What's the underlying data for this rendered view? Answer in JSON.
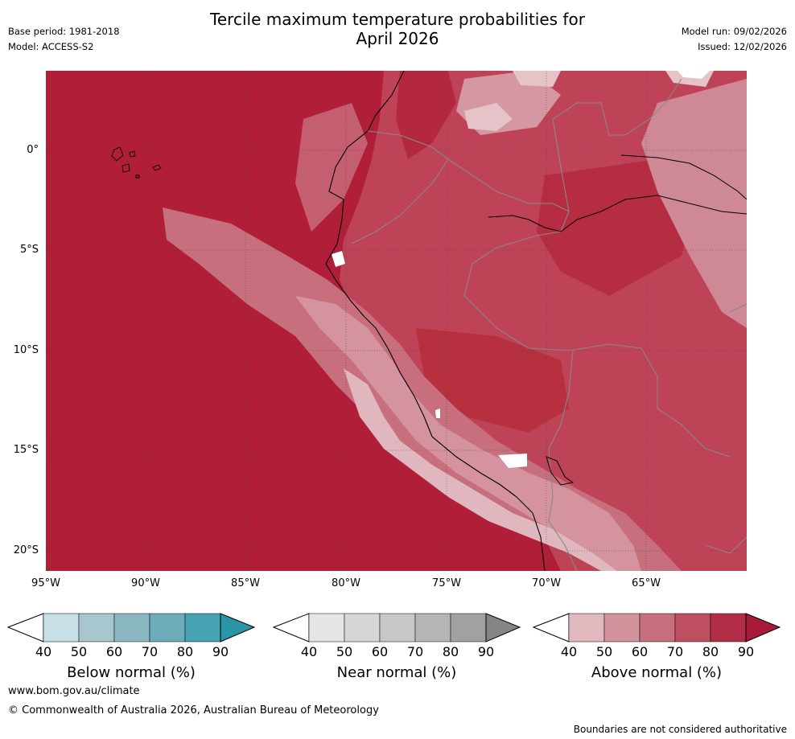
{
  "title": {
    "line1": "Tercile maximum temperature probabilities for",
    "line2": "April 2026"
  },
  "meta": {
    "base_period": "Base period: 1981-2018",
    "model": "Model: ACCESS-S2",
    "model_run": "Model run: 09/02/2026",
    "issued": "Issued: 12/02/2026"
  },
  "map": {
    "lat_ticks": [
      "0°",
      "5°S",
      "10°S",
      "15°S",
      "20°S"
    ],
    "lon_ticks": [
      "95°W",
      "90°W",
      "85°W",
      "80°W",
      "75°W",
      "70°W",
      "65°W"
    ],
    "dominant_category": "Above normal",
    "ocean_probability_band": "80-90",
    "land_probability_band": "60-80",
    "coastal_probability_band": "40-60"
  },
  "colorbars": [
    {
      "name": "below",
      "label": "Below normal (%)",
      "ticks": [
        "40",
        "50",
        "60",
        "70",
        "80",
        "90"
      ],
      "colors": [
        "#c6e0e6",
        "#a7c6cd",
        "#8ab7c2",
        "#6cadb9",
        "#48a3b2"
      ],
      "arrow_color": "#2a95a6"
    },
    {
      "name": "near",
      "label": "Near normal (%)",
      "ticks": [
        "40",
        "50",
        "60",
        "70",
        "80",
        "90"
      ],
      "colors": [
        "#e5e5e5",
        "#d6d6d6",
        "#c7c7c7",
        "#b5b5b5",
        "#a1a1a1"
      ],
      "arrow_color": "#858585"
    },
    {
      "name": "above",
      "label": "Above normal (%)",
      "ticks": [
        "40",
        "50",
        "60",
        "70",
        "80",
        "90"
      ],
      "colors": [
        "#e2b8bf",
        "#d3939c",
        "#c76f7c",
        "#bd4f60",
        "#b12f46"
      ],
      "arrow_color": "#a81a38"
    }
  ],
  "footer": {
    "url": "www.bom.gov.au/climate",
    "copyright": "© Commonwealth of Australia 2026, Australian Bureau of Meteorology",
    "disclaimer": "Boundaries are not considered authoritative"
  }
}
